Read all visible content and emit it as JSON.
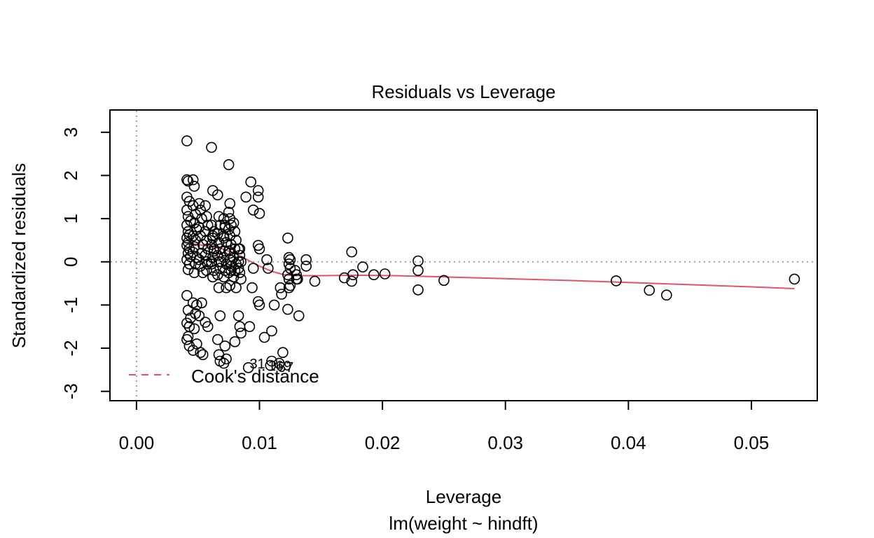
{
  "chart_data": {
    "type": "scatter",
    "title": "Residuals vs Leverage",
    "xlabel": "Leverage",
    "sublabel": "lm(weight ~ hindft)",
    "ylabel": "Standardized residuals",
    "xlim": [
      -0.0021,
      0.0553
    ],
    "ylim": [
      -3.2,
      3.5
    ],
    "xticks": [
      0.0,
      0.01,
      0.02,
      0.03,
      0.04,
      0.05
    ],
    "xtick_labels": [
      "0.00",
      "0.01",
      "0.02",
      "0.03",
      "0.04",
      "0.05"
    ],
    "yticks": [
      -3,
      -2,
      -1,
      0,
      1,
      2,
      3
    ],
    "ytick_labels": [
      "-3",
      "-2",
      "-1",
      "0",
      "1",
      "2",
      "3"
    ],
    "reference_lines": {
      "h": 0,
      "v": 0,
      "style": "dotted",
      "color": "#9e9e9e"
    },
    "grid": false,
    "legend": {
      "position": "bottom-left",
      "entries": [
        {
          "label": "Cook's distance",
          "style": "dashed",
          "color": "#DF536B"
        }
      ]
    },
    "point_labels": [
      {
        "text": "31",
        "x": 0.0092,
        "y": -2.47
      },
      {
        "text": "169",
        "x": 0.0107,
        "y": -2.52
      },
      {
        "text": "57",
        "x": 0.0115,
        "y": -2.55
      }
    ],
    "smooth_line": {
      "color": "#DF536B",
      "x": [
        0.004,
        0.005,
        0.006,
        0.007,
        0.008,
        0.009,
        0.01,
        0.011,
        0.012,
        0.013,
        0.015,
        0.018,
        0.021,
        0.025,
        0.03,
        0.035,
        0.04,
        0.045,
        0.05,
        0.0535
      ],
      "y": [
        0.45,
        0.4,
        0.36,
        0.3,
        0.2,
        0.05,
        -0.1,
        -0.22,
        -0.3,
        -0.32,
        -0.32,
        -0.31,
        -0.32,
        -0.35,
        -0.39,
        -0.43,
        -0.48,
        -0.53,
        -0.58,
        -0.62
      ]
    },
    "points": {
      "x": [
        0.0041,
        0.0041,
        0.0042,
        0.0041,
        0.0043,
        0.0041,
        0.0042,
        0.0044,
        0.0041,
        0.0042,
        0.0043,
        0.0041,
        0.0042,
        0.0041,
        0.0043,
        0.0042,
        0.0044,
        0.0041,
        0.0043,
        0.0042,
        0.0041,
        0.0042,
        0.0041,
        0.0043,
        0.0042,
        0.0041,
        0.0043,
        0.0044,
        0.0046,
        0.0047,
        0.0046,
        0.0048,
        0.0047,
        0.0049,
        0.0046,
        0.0048,
        0.0047,
        0.0046,
        0.0049,
        0.0048,
        0.0047,
        0.0046,
        0.0049,
        0.0048,
        0.0047,
        0.0049,
        0.0046,
        0.0051,
        0.0052,
        0.0053,
        0.0051,
        0.0052,
        0.0054,
        0.0053,
        0.0051,
        0.0052,
        0.0054,
        0.0053,
        0.0051,
        0.0052,
        0.0054,
        0.0056,
        0.0057,
        0.0058,
        0.0056,
        0.0057,
        0.0058,
        0.0056,
        0.0058,
        0.0057,
        0.0056,
        0.0058,
        0.0057,
        0.0061,
        0.0062,
        0.0061,
        0.0063,
        0.0062,
        0.0061,
        0.0063,
        0.0062,
        0.0061,
        0.0063,
        0.0062,
        0.0061,
        0.0063,
        0.0062,
        0.0066,
        0.0067,
        0.0068,
        0.0066,
        0.0067,
        0.0068,
        0.0066,
        0.0067,
        0.0068,
        0.0066,
        0.0067,
        0.0068,
        0.0066,
        0.0067,
        0.0068,
        0.0069,
        0.0071,
        0.0072,
        0.0071,
        0.0073,
        0.0072,
        0.0071,
        0.0073,
        0.0072,
        0.0071,
        0.0073,
        0.0072,
        0.0071,
        0.0073,
        0.0072,
        0.0071,
        0.0075,
        0.0076,
        0.0075,
        0.0076,
        0.0077,
        0.0075,
        0.0076,
        0.0077,
        0.0075,
        0.0076,
        0.0077,
        0.0075,
        0.0076,
        0.0077,
        0.0076,
        0.0079,
        0.008,
        0.0081,
        0.008,
        0.0079,
        0.0081,
        0.008,
        0.0079,
        0.0081,
        0.008,
        0.0083,
        0.0084,
        0.0085,
        0.0083,
        0.0084,
        0.0085,
        0.0083,
        0.0084,
        0.0085,
        0.0084,
        0.0083,
        0.0089,
        0.0093,
        0.0095,
        0.0094,
        0.0092,
        0.0091,
        0.0095,
        0.0099,
        0.0099,
        0.01,
        0.0099,
        0.01,
        0.0099,
        0.01,
        0.0104,
        0.0106,
        0.0107,
        0.011,
        0.0112,
        0.0109,
        0.0118,
        0.0117,
        0.0119,
        0.0116,
        0.011,
        0.0123,
        0.0124,
        0.0125,
        0.0124,
        0.0125,
        0.0123,
        0.0124,
        0.0125,
        0.0124,
        0.0123,
        0.0129,
        0.013,
        0.0131,
        0.013,
        0.0132,
        0.0138,
        0.0138,
        0.0145,
        0.0169,
        0.0175,
        0.0176,
        0.0175,
        0.0184,
        0.0193,
        0.0202,
        0.0229,
        0.0229,
        0.0229,
        0.025,
        0.039,
        0.0417,
        0.0431,
        0.0535
      ],
      "y": [
        2.8,
        1.9,
        1.87,
        1.5,
        1.4,
        1.2,
        1.05,
        0.95,
        0.85,
        0.7,
        0.62,
        0.55,
        0.45,
        0.38,
        0.3,
        0.2,
        0.12,
        0.05,
        -0.05,
        -0.18,
        -0.78,
        -1.12,
        -1.42,
        -1.5,
        -1.73,
        -1.8,
        -1.95,
        -1.3,
        1.9,
        1.75,
        1.3,
        1.1,
        0.9,
        0.75,
        0.6,
        0.5,
        0.35,
        0.22,
        0.1,
        -0.05,
        -0.25,
        -0.95,
        -1.0,
        -1.2,
        -1.55,
        -1.9,
        -2.05,
        1.35,
        1.2,
        1.0,
        0.8,
        0.6,
        0.4,
        0.2,
        0.05,
        -0.1,
        -0.25,
        -0.95,
        -1.25,
        -2.1,
        -2.15,
        1.3,
        1.05,
        0.85,
        0.7,
        0.5,
        0.3,
        0.15,
        -0.05,
        -0.2,
        -1.4,
        -1.5,
        0.0,
        2.65,
        1.65,
        0.85,
        0.7,
        0.55,
        0.4,
        0.25,
        0.1,
        -0.05,
        -0.2,
        -0.35,
        0.0,
        0.3,
        0.6,
        1.55,
        1.05,
        0.85,
        0.65,
        0.45,
        0.3,
        0.15,
        0.0,
        -0.15,
        -0.3,
        -0.6,
        -1.25,
        -1.8,
        -2.15,
        -2.3,
        0.0,
        1.0,
        0.8,
        0.6,
        0.45,
        0.25,
        0.1,
        -0.05,
        -0.2,
        -0.35,
        -0.6,
        -1.95,
        -2.35,
        -2.25,
        0.85,
        0.55,
        2.25,
        1.35,
        1.15,
        1.0,
        0.85,
        0.75,
        0.6,
        0.4,
        0.25,
        0.05,
        -0.1,
        -0.25,
        -0.55,
        -0.2,
        0.2,
        0.9,
        0.7,
        0.5,
        0.3,
        0.1,
        -0.05,
        -0.2,
        -0.35,
        -0.6,
        -1.85,
        0.3,
        0.15,
        0.0,
        -0.15,
        -0.25,
        -0.4,
        -1.25,
        -1.5,
        -1.65,
        0.3,
        0.0,
        1.5,
        1.85,
        1.2,
        -0.6,
        -1.5,
        -2.45,
        -0.15,
        1.65,
        1.5,
        1.12,
        0.38,
        0.3,
        -0.92,
        -1.0,
        -1.75,
        0.05,
        -0.15,
        -1.6,
        -1.0,
        -2.4,
        -0.75,
        -0.6,
        -2.1,
        -2.35,
        -2.3,
        0.55,
        0.1,
        0.05,
        -0.05,
        -0.15,
        -0.3,
        -0.4,
        -0.55,
        -0.6,
        -1.1,
        -0.2,
        -0.3,
        -0.4,
        -0.4,
        -1.25,
        0.05,
        -0.1,
        -0.45,
        -0.37,
        0.23,
        -0.3,
        -0.45,
        -0.12,
        -0.3,
        -0.28,
        0.02,
        -0.2,
        -0.65,
        -0.43,
        -0.44,
        -0.66,
        -0.77,
        -0.4
      ]
    }
  }
}
